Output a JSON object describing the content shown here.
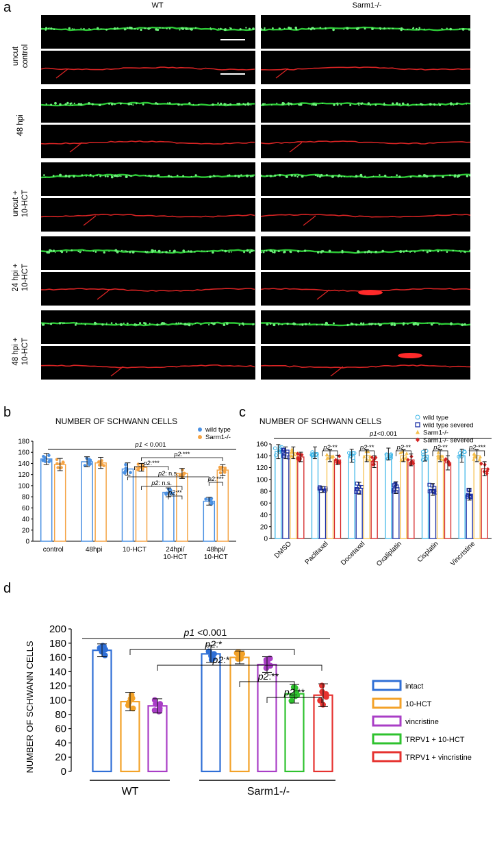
{
  "panel_a": {
    "letter": "a",
    "columns": [
      "WT",
      "Sarm1-/-"
    ],
    "rows": [
      {
        "label_lines": [
          "uncut",
          "control"
        ]
      },
      {
        "label_lines": [
          "48 hpi"
        ]
      },
      {
        "label_lines": [
          "uncut +",
          "10-HCT"
        ]
      },
      {
        "label_lines": [
          "24 hpi +",
          "10-HCT"
        ]
      },
      {
        "label_lines": [
          "48 hpi +",
          "10-HCT"
        ]
      }
    ],
    "stain_colors": {
      "green": "#2fd53a",
      "red": "#e02525"
    }
  },
  "chart_data": [
    {
      "panel": "b",
      "type": "bar",
      "title": "NUMBER OF SCHWANN CELLS",
      "categories": [
        "control",
        "48hpi",
        "10-HCT",
        "24hpi/\n10-HCT",
        "48hpi/\n10-HCT"
      ],
      "series": [
        {
          "name": "wild type",
          "color": "#4a90e2",
          "values": [
            148,
            143,
            130,
            88,
            72
          ],
          "errors": [
            10,
            9,
            11,
            8,
            7
          ]
        },
        {
          "name": "Sarm1-/-",
          "color": "#f5a445",
          "values": [
            138,
            141,
            133,
            122,
            128
          ],
          "errors": [
            11,
            10,
            7,
            9,
            10
          ]
        }
      ],
      "ylim": [
        0,
        180
      ],
      "yticks": [
        0,
        20,
        40,
        60,
        80,
        100,
        120,
        140,
        160,
        180
      ],
      "legend_position": "top-right",
      "annotations": [
        {
          "text": "p1 < 0.001"
        },
        {
          "text": "p2:***"
        },
        {
          "text": "p2:***"
        },
        {
          "text": "p2: n.s."
        },
        {
          "text": "p2: n.s."
        },
        {
          "text": "p2:**"
        },
        {
          "text": "p2:***"
        }
      ]
    },
    {
      "panel": "c",
      "type": "bar",
      "title": "NUMBER OF SCHWANN CELLS",
      "categories": [
        "DMSO",
        "Paclitaxel",
        "Docetaxel",
        "Oxaliplatin",
        "Cisplatin",
        "Vincristine"
      ],
      "series": [
        {
          "name": "wild type",
          "color": "#3fb7e8",
          "values": [
            147,
            145,
            140,
            143,
            141,
            140
          ],
          "errors": [
            12,
            10,
            11,
            10,
            10,
            11
          ]
        },
        {
          "name": "wild type severed",
          "color": "#1b2fa6",
          "values": [
            145,
            83,
            85,
            86,
            83,
            75
          ],
          "errors": [
            10,
            5,
            10,
            10,
            10,
            10
          ]
        },
        {
          "name": "Sarm1-/-",
          "color": "#f6c04d",
          "values": [
            145,
            140,
            140,
            140,
            140,
            140
          ],
          "errors": [
            10,
            10,
            10,
            10,
            10,
            10
          ]
        },
        {
          "name": "Sarm1-/- severed",
          "color": "#d42424",
          "values": [
            138,
            133,
            130,
            133,
            128,
            118
          ],
          "errors": [
            8,
            8,
            10,
            10,
            12,
            12
          ]
        }
      ],
      "ylim": [
        0,
        160
      ],
      "yticks": [
        0,
        20,
        40,
        60,
        80,
        100,
        120,
        140,
        160
      ],
      "legend_position": "top-right",
      "annotations": [
        {
          "text": "p1<0.001"
        },
        {
          "text": "p2:**"
        },
        {
          "text": "p2:**"
        },
        {
          "text": "p2:**"
        },
        {
          "text": "p2:**"
        },
        {
          "text": "p2:***"
        }
      ]
    },
    {
      "panel": "d",
      "type": "bar",
      "ylabel": "NUMBER OF SCHWANN CELLS",
      "groups": [
        "WT",
        "Sarm1-/-"
      ],
      "bars": [
        {
          "group": "WT",
          "series": "intact",
          "value": 170,
          "error": 9
        },
        {
          "group": "WT",
          "series": "10-HCT",
          "value": 98,
          "error": 13
        },
        {
          "group": "WT",
          "series": "vincristine",
          "value": 92,
          "error": 10
        },
        {
          "group": "Sarm1-/-",
          "series": "intact",
          "value": 165,
          "error": 12
        },
        {
          "group": "Sarm1-/-",
          "series": "10-HCT",
          "value": 160,
          "error": 9
        },
        {
          "group": "Sarm1-/-",
          "series": "vincristine",
          "value": 150,
          "error": 11
        },
        {
          "group": "Sarm1-/-",
          "series": "TRPV1 + 10-HCT",
          "value": 109,
          "error": 13
        },
        {
          "group": "Sarm1-/-",
          "series": "TRPV1 + vincristine",
          "value": 107,
          "error": 16
        }
      ],
      "series": [
        {
          "name": "intact",
          "color": "#2f6fd6"
        },
        {
          "name": "10-HCT",
          "color": "#f3a228"
        },
        {
          "name": "vincristine",
          "color": "#a93ec6"
        },
        {
          "name": "TRPV1 + 10-HCT",
          "color": "#2ec22e"
        },
        {
          "name": "TRPV1 + vincristine",
          "color": "#e6322f"
        }
      ],
      "ylim": [
        0,
        200
      ],
      "yticks": [
        0,
        20,
        40,
        60,
        80,
        100,
        120,
        140,
        160,
        180,
        200
      ],
      "legend_position": "right",
      "annotations": [
        {
          "text": "p1 <0.001"
        },
        {
          "text": "p2:*"
        },
        {
          "text": "p2:*"
        },
        {
          "text": "p2:**"
        },
        {
          "text": "p2:**"
        }
      ]
    }
  ]
}
